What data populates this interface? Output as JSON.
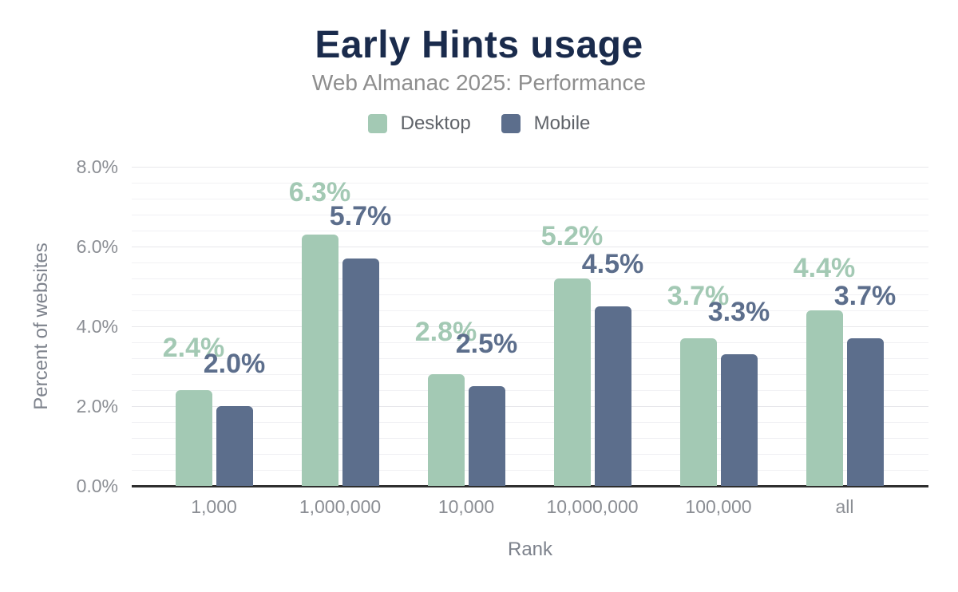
{
  "chart": {
    "title": "Early Hints usage",
    "subtitle": "Web Almanac 2025: Performance"
  },
  "legend": {
    "items": [
      {
        "label": "Desktop",
        "color": "#a3c9b4"
      },
      {
        "label": "Mobile",
        "color": "#5c6e8c"
      }
    ]
  },
  "chart_data": {
    "type": "bar",
    "title": "Early Hints usage",
    "subtitle": "Web Almanac 2025: Performance",
    "xlabel": "Rank",
    "ylabel": "Percent of websites",
    "categories": [
      "1,000",
      "1,000,000",
      "10,000",
      "10,000,000",
      "100,000",
      "all"
    ],
    "series": [
      {
        "name": "Desktop",
        "color": "#a3c9b4",
        "values": [
          2.4,
          6.3,
          2.8,
          5.2,
          3.7,
          4.4
        ],
        "labels": [
          "2.4%",
          "6.3%",
          "2.8%",
          "5.2%",
          "3.7%",
          "4.4%"
        ]
      },
      {
        "name": "Mobile",
        "color": "#5c6e8c",
        "values": [
          2.0,
          5.7,
          2.5,
          4.5,
          3.3,
          3.7
        ],
        "labels": [
          "2.0%",
          "5.7%",
          "2.5%",
          "4.5%",
          "3.3%",
          "3.7%"
        ]
      }
    ],
    "ylim": [
      0,
      8
    ],
    "y_ticks": [
      {
        "value": 0,
        "label": "0.0%"
      },
      {
        "value": 2,
        "label": "2.0%"
      },
      {
        "value": 4,
        "label": "4.0%"
      },
      {
        "value": 6,
        "label": "6.0%"
      },
      {
        "value": 8,
        "label": "8.0%"
      }
    ],
    "grid": {
      "minor_step": 0.4,
      "major_step": 2,
      "on": true
    },
    "legend_position": "top",
    "colors": {
      "title": "#1a2b4c",
      "subtitle": "#8e8e8e",
      "tick_text": "#8b8e94",
      "axis_title_text": "#7d828c",
      "legend_text": "#5f6369",
      "axis_line": "#2e2e2e",
      "gridline_minor": "#f1f1f4",
      "gridline_major": "#e7e7eb"
    }
  }
}
